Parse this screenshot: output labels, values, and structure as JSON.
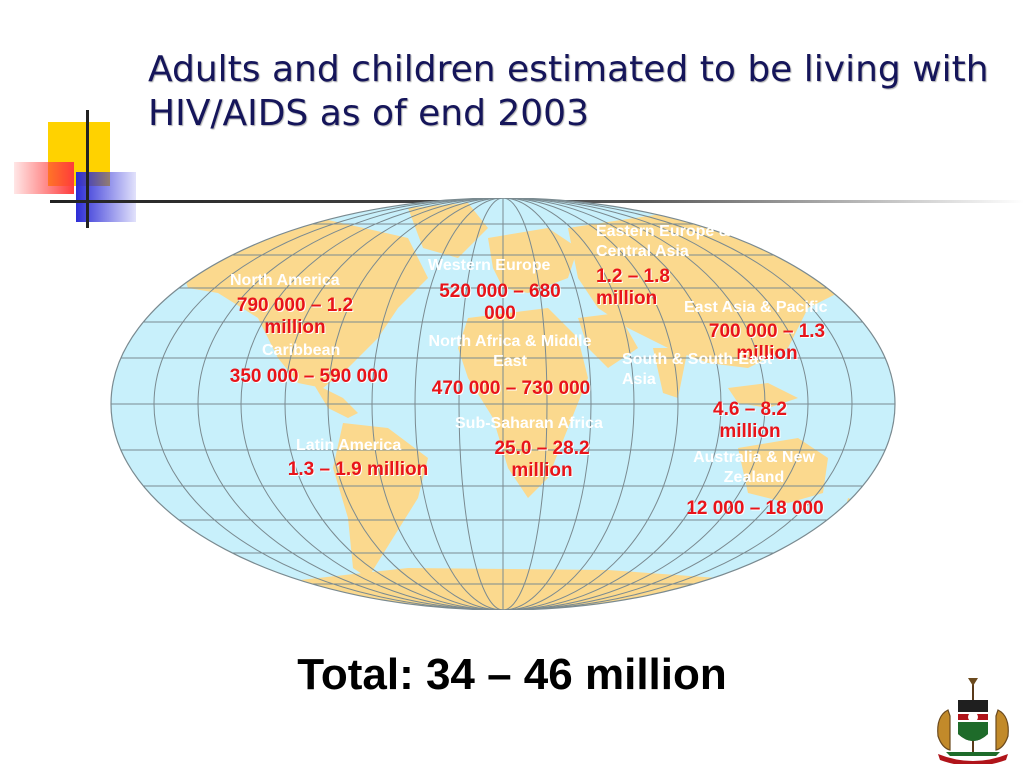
{
  "title": "Adults and children estimated to be living with HIV/AIDS as of end 2003",
  "regions": {
    "north_america": {
      "name": "North America",
      "value": "790 000 – 1.2 million"
    },
    "caribbean": {
      "name": "Caribbean",
      "value": "350 000 – 590 000"
    },
    "latin_america": {
      "name": "Latin America",
      "value": "1.3 – 1.9 million"
    },
    "western_europe": {
      "name": "Western Europe",
      "value": "520 000 – 680 000"
    },
    "north_africa_middle_east": {
      "name": "North Africa & Middle East",
      "value": "470 000 – 730 000"
    },
    "sub_saharan_africa": {
      "name": "Sub-Saharan Africa",
      "value": "25.0 – 28.2 million"
    },
    "eastern_europe_central_asia": {
      "name": "Eastern Europe & Central Asia",
      "value": "1.2 – 1.8 million"
    },
    "east_asia_pacific": {
      "name": "East Asia & Pacific",
      "value": "700 000 – 1.3 million"
    },
    "south_southeast_asia": {
      "name": "South & South-East Asia",
      "value": "4.6 – 8.2 million"
    },
    "australia_new_zealand": {
      "name": "Australia & New Zealand",
      "value": "12 000 – 18 000"
    }
  },
  "total": "Total: 34 – 46 million",
  "colors": {
    "ocean": "#c8f0fb",
    "land": "#fbd98e",
    "value_red": "#e8141a",
    "title_navy": "#15155a"
  },
  "icons": [
    "world-map",
    "kenya-coat-of-arms-emblem"
  ]
}
